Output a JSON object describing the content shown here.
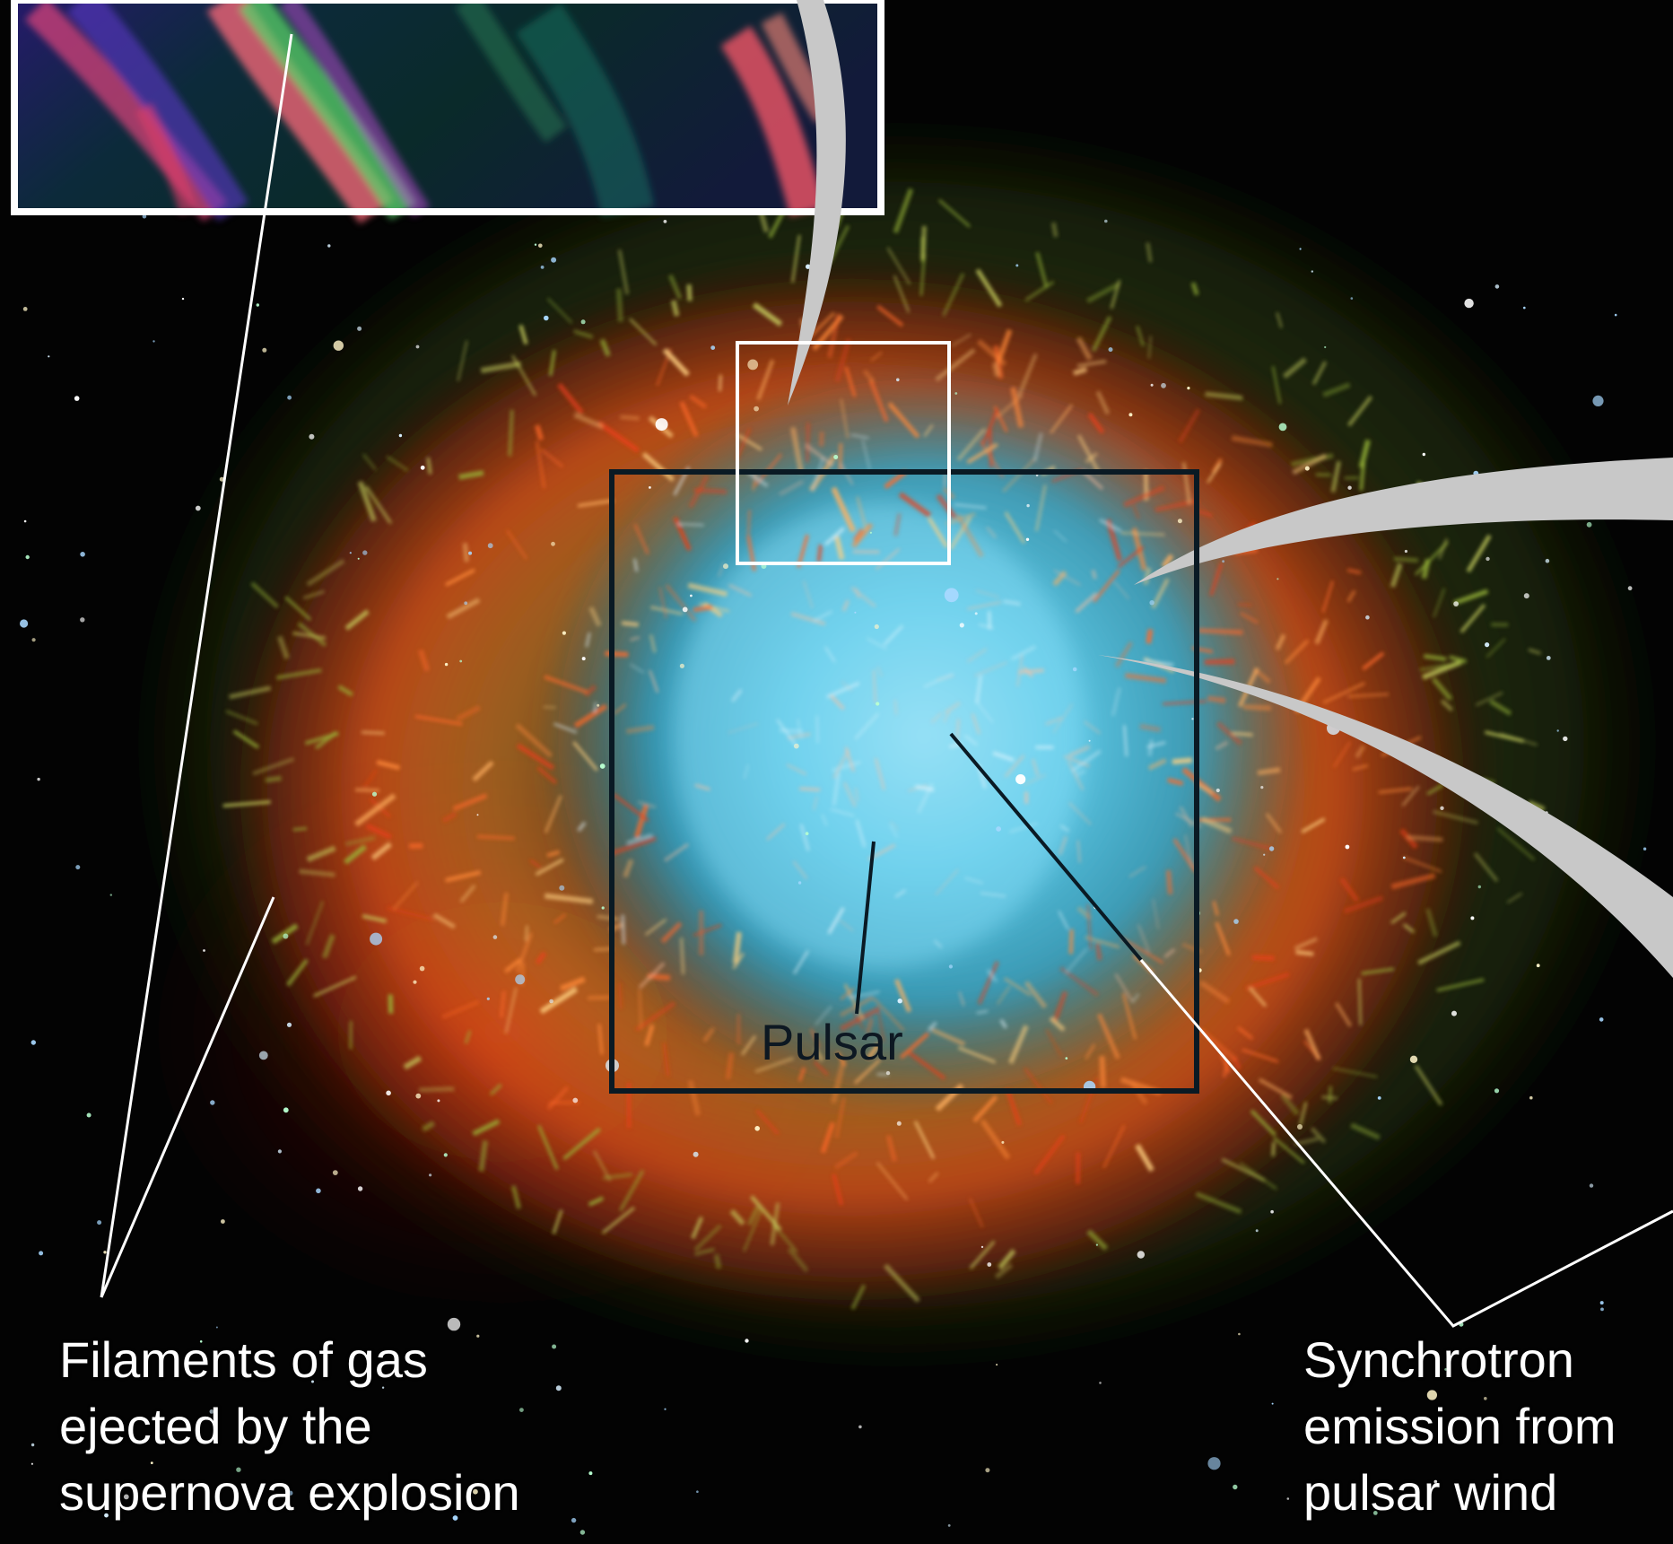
{
  "labels": {
    "filaments": [
      "Filaments of gas",
      "ejected by the",
      "supernova explosion"
    ],
    "synchrotron": [
      "Synchrotron",
      "emission from",
      "pulsar wind"
    ],
    "pulsar": "Pulsar"
  },
  "colors": {
    "background": "#030303",
    "nebula_core": "#4cc9ec",
    "filament_orange": "#ff7a2a",
    "filament_red": "#d22a12",
    "outer_green": "#7a9a2a",
    "callout_gray": "#c8c8c8",
    "frame_white": "#ffffff",
    "frame_dark": "#0a1a24"
  }
}
